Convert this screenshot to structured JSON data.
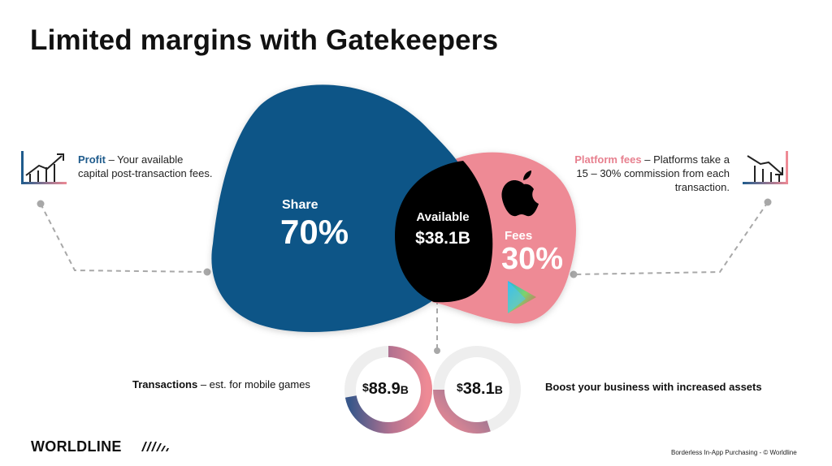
{
  "title": "Limited margins with Gatekeepers",
  "diagram": {
    "share": {
      "label": "Share",
      "percent": "70%"
    },
    "available": {
      "label": "Available",
      "value": "$38.1B"
    },
    "fees": {
      "label": "Fees",
      "percent": "30%"
    }
  },
  "profit_callout": {
    "highlight": "Profit",
    "text": " – Your available capital post-transaction fees."
  },
  "fees_callout": {
    "highlight": "Platform fees",
    "text": " – Platforms take a 15 – 30% commission from each transaction."
  },
  "transactions": {
    "highlight": "Transactions",
    "text": " – est. for mobile games",
    "currency": "$",
    "amount": "88.9",
    "unit": "B",
    "fill_fraction": 0.72
  },
  "available_donut": {
    "currency": "$",
    "amount": "38.1",
    "unit": "B",
    "fill_fraction": 0.3
  },
  "boost_text": "Boost your business with increased assets",
  "logo": "WORLDLINE",
  "footer": "Borderless In-App Purchasing  - © Worldline",
  "colors": {
    "share_blue": "#0f5487",
    "fees_pink": "#ee8a95",
    "available_black": "#000000",
    "gray_dash": "#a8a8a8"
  },
  "icons": {
    "profit": "chart-growth-icon",
    "fees": "chart-decline-icon",
    "apple": "apple-icon",
    "play": "google-play-icon",
    "logo_mark": "worldline-wave-icon"
  }
}
